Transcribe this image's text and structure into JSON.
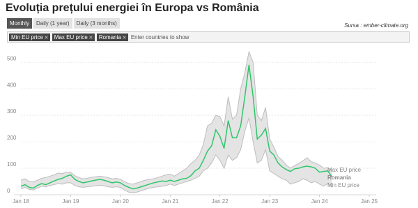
{
  "header": {
    "title": "Evoluția prețului energiei în Europa vs România",
    "source": "Sursa : ember-climate.org"
  },
  "controls": {
    "buttons": [
      "Monthly",
      "Daily (1 year)",
      "Daily (3 months)"
    ],
    "tags": [
      "Min EU price",
      "Max EU price",
      "Romania"
    ],
    "placeholder": "Enter countries to show"
  },
  "chart_data": {
    "type": "line",
    "x": [
      "2018-01",
      "2018-02",
      "2018-03",
      "2018-04",
      "2018-05",
      "2018-06",
      "2018-07",
      "2018-08",
      "2018-09",
      "2018-10",
      "2018-11",
      "2018-12",
      "2019-01",
      "2019-02",
      "2019-03",
      "2019-04",
      "2019-05",
      "2019-06",
      "2019-07",
      "2019-08",
      "2019-09",
      "2019-10",
      "2019-11",
      "2019-12",
      "2020-01",
      "2020-02",
      "2020-03",
      "2020-04",
      "2020-05",
      "2020-06",
      "2020-07",
      "2020-08",
      "2020-09",
      "2020-10",
      "2020-11",
      "2020-12",
      "2021-01",
      "2021-02",
      "2021-03",
      "2021-04",
      "2021-05",
      "2021-06",
      "2021-07",
      "2021-08",
      "2021-09",
      "2021-10",
      "2021-11",
      "2021-12",
      "2022-01",
      "2022-02",
      "2022-03",
      "2022-04",
      "2022-05",
      "2022-06",
      "2022-07",
      "2022-08",
      "2022-09",
      "2022-10",
      "2022-11",
      "2022-12",
      "2023-01",
      "2023-02",
      "2023-03",
      "2023-04",
      "2023-05",
      "2023-06",
      "2023-07",
      "2023-08",
      "2023-09",
      "2023-10",
      "2023-11",
      "2023-12",
      "2024-01",
      "2024-02",
      "2024-03",
      "2024-04"
    ],
    "series": [
      {
        "name": "Max EU price",
        "color": "#bdbdbd",
        "values": [
          55,
          60,
          50,
          48,
          55,
          62,
          65,
          70,
          75,
          82,
          80,
          85,
          85,
          72,
          65,
          60,
          62,
          66,
          68,
          70,
          68,
          65,
          60,
          62,
          58,
          50,
          42,
          40,
          45,
          50,
          55,
          58,
          60,
          65,
          70,
          75,
          78,
          70,
          80,
          90,
          100,
          118,
          130,
          150,
          190,
          260,
          270,
          300,
          295,
          260,
          370,
          285,
          300,
          400,
          460,
          540,
          500,
          300,
          280,
          330,
          210,
          180,
          145,
          130,
          112,
          100,
          110,
          118,
          128,
          140,
          125,
          120,
          112,
          100,
          102,
          92
        ]
      },
      {
        "name": "Romania",
        "color": "#2fc66a",
        "values": [
          32,
          38,
          28,
          25,
          35,
          42,
          38,
          45,
          52,
          58,
          62,
          70,
          75,
          58,
          50,
          45,
          48,
          52,
          55,
          58,
          55,
          50,
          45,
          48,
          45,
          35,
          28,
          22,
          25,
          30,
          35,
          40,
          45,
          48,
          52,
          50,
          55,
          50,
          55,
          60,
          62,
          72,
          90,
          100,
          130,
          165,
          185,
          245,
          220,
          175,
          280,
          215,
          215,
          260,
          370,
          490,
          370,
          210,
          225,
          250,
          165,
          150,
          120,
          105,
          95,
          88,
          98,
          100,
          105,
          108,
          105,
          100,
          85,
          88,
          90,
          68
        ]
      },
      {
        "name": "Min EU price",
        "color": "#bdbdbd",
        "values": [
          22,
          28,
          20,
          18,
          25,
          32,
          30,
          35,
          38,
          42,
          40,
          45,
          45,
          35,
          30,
          28,
          30,
          32,
          34,
          36,
          34,
          30,
          28,
          30,
          28,
          18,
          10,
          8,
          10,
          15,
          20,
          25,
          28,
          30,
          32,
          35,
          40,
          35,
          40,
          45,
          50,
          55,
          62,
          70,
          90,
          100,
          120,
          150,
          130,
          100,
          150,
          130,
          140,
          170,
          240,
          290,
          200,
          120,
          130,
          170,
          90,
          80,
          70,
          60,
          55,
          40,
          45,
          50,
          60,
          55,
          45,
          50,
          40,
          32,
          42,
          28
        ]
      }
    ],
    "band_color": "#e4e4e4",
    "xlim": [
      "2018-01",
      "2025-01"
    ],
    "xticks": [
      {
        "value": "2018-01",
        "label": "Jan 18"
      },
      {
        "value": "2019-01",
        "label": "Jan 19"
      },
      {
        "value": "2020-01",
        "label": "Jan 20"
      },
      {
        "value": "2021-01",
        "label": "Jan 21"
      },
      {
        "value": "2022-01",
        "label": "Jan 22"
      },
      {
        "value": "2023-01",
        "label": "Jan 23"
      },
      {
        "value": "2024-01",
        "label": "Jan 24"
      },
      {
        "value": "2025-01",
        "label": "Jan 25"
      }
    ],
    "ylim": [
      0,
      540
    ],
    "yticks": [
      0,
      100,
      200,
      300,
      400,
      500
    ],
    "grid": true
  }
}
